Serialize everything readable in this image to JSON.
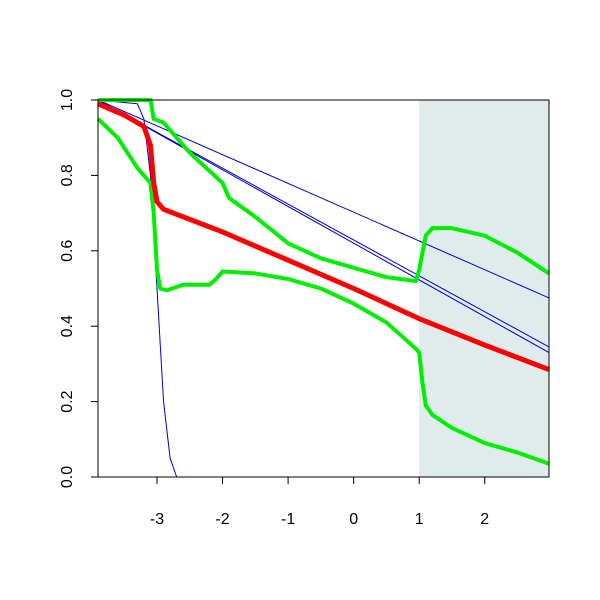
{
  "chart_data": {
    "type": "line",
    "xlim": [
      -3.9,
      2.98
    ],
    "ylim": [
      0,
      1
    ],
    "xticks": [
      -3,
      -2,
      -1,
      0,
      1,
      2
    ],
    "yticks": [
      {
        "value": 0,
        "label": "0.0"
      },
      0.2,
      0.4,
      0.6,
      0.8,
      {
        "value": 1,
        "label": "1.0"
      }
    ],
    "shade": {
      "xlim": [
        1,
        2.98
      ],
      "color": "#dfeceb"
    },
    "series": [
      {
        "color": "#0000cc",
        "width": 1,
        "x": [
          -3.9,
          2.98
        ],
        "values": [
          1.0,
          0.475
        ]
      },
      {
        "color": "#0000cc",
        "width": 1,
        "x": [
          -3.9,
          2.98
        ],
        "values": [
          1.0,
          0.345
        ]
      },
      {
        "color": "#0000cc",
        "width": 1,
        "x": [
          -3.9,
          2.98
        ],
        "values": [
          1.0,
          0.33
        ]
      },
      {
        "color": "#0000cc",
        "width": 1,
        "x": [
          -3.9,
          -3.3,
          -3.2,
          -3.1,
          -3.0,
          -2.9,
          -2.8,
          -2.7
        ],
        "values": [
          1.0,
          0.99,
          0.95,
          0.8,
          0.5,
          0.2,
          0.05,
          0.0
        ]
      },
      {
        "color": "#00ee00",
        "width": 4,
        "x": [
          -3.9,
          -3.1,
          -3.05,
          -2.9,
          -2.8,
          -2.5,
          -2,
          -1.9,
          -1.5,
          -1,
          -0.5,
          0,
          0.5,
          0.95,
          1,
          1.1,
          1.2,
          1.5,
          2,
          2.5,
          2.98
        ],
        "values": [
          1.0,
          1.0,
          0.95,
          0.94,
          0.92,
          0.86,
          0.78,
          0.74,
          0.69,
          0.62,
          0.58,
          0.555,
          0.53,
          0.52,
          0.55,
          0.64,
          0.66,
          0.66,
          0.64,
          0.595,
          0.54
        ]
      },
      {
        "color": "#00ee00",
        "width": 4,
        "x": [
          -3.9,
          -3.6,
          -3.3,
          -3.1,
          -3.05,
          -3.0,
          -2.95,
          -2.85,
          -2.6,
          -2.2,
          -2.1,
          -2,
          -1.5,
          -1,
          -0.5,
          0,
          0.5,
          0.95,
          1,
          1.05,
          1.1,
          1.2,
          1.5,
          2,
          2.5,
          2.98
        ],
        "values": [
          0.95,
          0.9,
          0.82,
          0.78,
          0.7,
          0.55,
          0.5,
          0.495,
          0.51,
          0.51,
          0.525,
          0.545,
          0.54,
          0.525,
          0.5,
          0.46,
          0.41,
          0.34,
          0.33,
          0.25,
          0.19,
          0.165,
          0.13,
          0.09,
          0.065,
          0.035
        ]
      },
      {
        "color": "#ff0000",
        "width": 5,
        "x": [
          -3.9,
          -3.5,
          -3.2,
          -3.1,
          -3.05,
          -3,
          -2.9,
          -2,
          -1,
          0,
          1,
          2,
          2.98
        ],
        "values": [
          0.99,
          0.96,
          0.93,
          0.88,
          0.78,
          0.73,
          0.71,
          0.65,
          0.575,
          0.5,
          0.42,
          0.35,
          0.285
        ]
      }
    ]
  }
}
